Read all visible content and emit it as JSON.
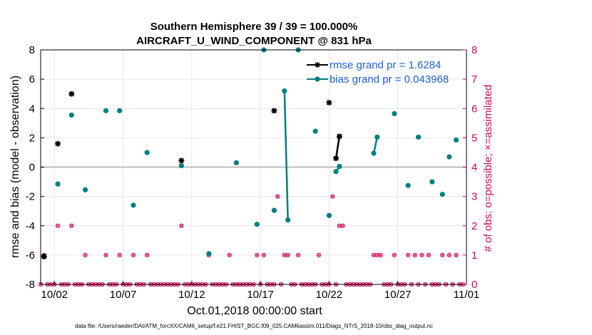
{
  "chart_data": {
    "type": "scatter",
    "title": "Southern Hemisphere 39 / 39 = 100.000%",
    "subtitle": "AIRCRAFT_U_WIND_COMPONENT @ 831 hPa",
    "xlabel": "Oct.01,2018 00:00:00 start",
    "ylabel": "rmse and bias (model - observation)",
    "ylabel_right": "# of obs: o=possible; ×=assimilated",
    "xlim": [
      0.5,
      31.5
    ],
    "ylim": [
      -8,
      8
    ],
    "ylim_right": [
      0,
      8
    ],
    "x_ticks": [
      {
        "x": 1.5,
        "label": "10/02"
      },
      {
        "x": 6.5,
        "label": "10/07"
      },
      {
        "x": 11.5,
        "label": "10/12"
      },
      {
        "x": 16.5,
        "label": "10/17"
      },
      {
        "x": 21.5,
        "label": "10/22"
      },
      {
        "x": 26.5,
        "label": "10/27"
      },
      {
        "x": 31.5,
        "label": "11/01"
      }
    ],
    "y_ticks_left": [
      "-8",
      "-6",
      "-4",
      "-2",
      "0",
      "2",
      "4",
      "6",
      "8"
    ],
    "y_ticks_right": [
      "0",
      "1",
      "2",
      "3",
      "4",
      "5",
      "6",
      "7",
      "8"
    ],
    "zero_line": 0,
    "legend": {
      "position": "top-right",
      "entries": [
        "rmse grand pr = 1.6284",
        "bias grand pr = 0.043968"
      ]
    },
    "series": [
      {
        "name": "rmse",
        "color": "#000000",
        "marker": "asterisk",
        "points": [
          [
            0.75,
            -6.1
          ],
          [
            1.75,
            1.6
          ],
          [
            2.75,
            5.0
          ],
          [
            10.75,
            0.45
          ],
          [
            17.5,
            3.85
          ],
          [
            21.5,
            4.4
          ],
          [
            22.0,
            0.6
          ],
          [
            22.25,
            2.1
          ]
        ],
        "segments": [
          [
            [
              22.0,
              0.6
            ],
            [
              22.25,
              2.1
            ]
          ]
        ]
      },
      {
        "name": "bias",
        "color": "#007f7f",
        "marker": "circle",
        "points": [
          [
            0.75,
            -6.1
          ],
          [
            1.75,
            -1.15
          ],
          [
            2.75,
            3.55
          ],
          [
            3.75,
            -1.55
          ],
          [
            5.25,
            3.85
          ],
          [
            6.25,
            3.85
          ],
          [
            7.25,
            -2.6
          ],
          [
            8.25,
            1.0
          ],
          [
            10.75,
            0.1
          ],
          [
            12.75,
            -5.9
          ],
          [
            14.75,
            0.3
          ],
          [
            16.25,
            -3.9
          ],
          [
            16.75,
            8.0
          ],
          [
            17.5,
            -2.95
          ],
          [
            18.25,
            5.2
          ],
          [
            18.5,
            -3.6
          ],
          [
            19.25,
            8.0
          ],
          [
            20.5,
            2.45
          ],
          [
            21.5,
            -3.3
          ],
          [
            22.0,
            -0.3
          ],
          [
            22.25,
            0.05
          ],
          [
            24.75,
            0.95
          ],
          [
            25.0,
            2.05
          ],
          [
            26.25,
            3.65
          ],
          [
            27.25,
            -1.25
          ],
          [
            28.0,
            2.05
          ],
          [
            29.0,
            -1.0
          ],
          [
            29.75,
            -1.85
          ],
          [
            30.25,
            0.7
          ],
          [
            30.75,
            1.85
          ]
        ],
        "segments": [
          [
            [
              18.25,
              5.2
            ],
            [
              18.5,
              -3.6
            ]
          ],
          [
            [
              22.0,
              -0.3
            ],
            [
              22.25,
              0.05
            ]
          ],
          [
            [
              24.75,
              0.95
            ],
            [
              25.0,
              2.05
            ]
          ]
        ]
      },
      {
        "name": "obs possible",
        "color": "#cc0a56",
        "marker": "o",
        "axis": "right",
        "x": [
          0.5,
          0.75,
          1.0,
          1.25,
          1.5,
          1.75,
          2.0,
          2.25,
          2.5,
          2.75,
          3.0,
          3.25,
          3.5,
          3.75,
          4.0,
          4.25,
          4.5,
          4.75,
          5.0,
          5.25,
          5.5,
          5.75,
          6.0,
          6.25,
          6.5,
          6.75,
          7.0,
          7.25,
          7.5,
          7.75,
          8.0,
          8.25,
          8.5,
          8.75,
          9.0,
          9.25,
          9.5,
          9.75,
          10.0,
          10.25,
          10.5,
          10.75,
          11.0,
          11.25,
          11.5,
          11.75,
          12.0,
          12.25,
          12.5,
          12.75,
          13.0,
          13.25,
          13.5,
          13.75,
          14.0,
          14.25,
          14.5,
          14.75,
          15.0,
          15.25,
          15.5,
          15.75,
          16.0,
          16.25,
          16.5,
          16.75,
          17.0,
          17.25,
          17.5,
          17.75,
          18.0,
          18.25,
          18.5,
          18.75,
          19.0,
          19.25,
          19.5,
          19.75,
          20.0,
          20.25,
          20.5,
          20.75,
          21.0,
          21.25,
          21.5,
          21.75,
          22.0,
          22.25,
          22.5,
          22.75,
          23.0,
          23.25,
          23.5,
          23.75,
          24.0,
          24.25,
          24.5,
          24.75,
          25.0,
          25.25,
          25.5,
          25.75,
          26.0,
          26.25,
          26.5,
          26.75,
          27.0,
          27.25,
          27.5,
          27.75,
          28.0,
          28.25,
          28.5,
          28.75,
          29.0,
          29.25,
          29.5,
          29.75,
          30.0,
          30.25,
          30.5,
          30.75,
          31.0,
          31.25
        ],
        "y": [
          0,
          1,
          0,
          0,
          0,
          2,
          0,
          0,
          0,
          2,
          0,
          0,
          0,
          1,
          0,
          0,
          0,
          0,
          0,
          1,
          0,
          0,
          0,
          1,
          0,
          0,
          0,
          1,
          0,
          0,
          0,
          1,
          0,
          0,
          0,
          0,
          0,
          0,
          0,
          0,
          0,
          2,
          0,
          0,
          0,
          0,
          0,
          0,
          0,
          1,
          0,
          0,
          0,
          0,
          0,
          1,
          0,
          0,
          0,
          0,
          0,
          0,
          0,
          1,
          0,
          1,
          0,
          0,
          0,
          3,
          0,
          1,
          1,
          0,
          0,
          1,
          0,
          0,
          0,
          0,
          0,
          1,
          0,
          0,
          0,
          3,
          0,
          2,
          2,
          0,
          0,
          0,
          0,
          0,
          0,
          0,
          0,
          1,
          1,
          1,
          0,
          0,
          0,
          1,
          0,
          0,
          0,
          1,
          0,
          1,
          0,
          1,
          0,
          1,
          0,
          0,
          0,
          1,
          0,
          1,
          0,
          1,
          0,
          0
        ]
      },
      {
        "name": "obs assimilated",
        "color": "#cc0a56",
        "marker": "x",
        "axis": "right",
        "same_as": "obs possible"
      }
    ]
  },
  "footnote": "data file: /Users/raeder/DAI/ATM_forcXX/CAM6_setup/f.e21.FHIST_BGC.f09_025.CAM6assim.011/Diags_NTrS_2018-10/obs_diag_output.nc"
}
